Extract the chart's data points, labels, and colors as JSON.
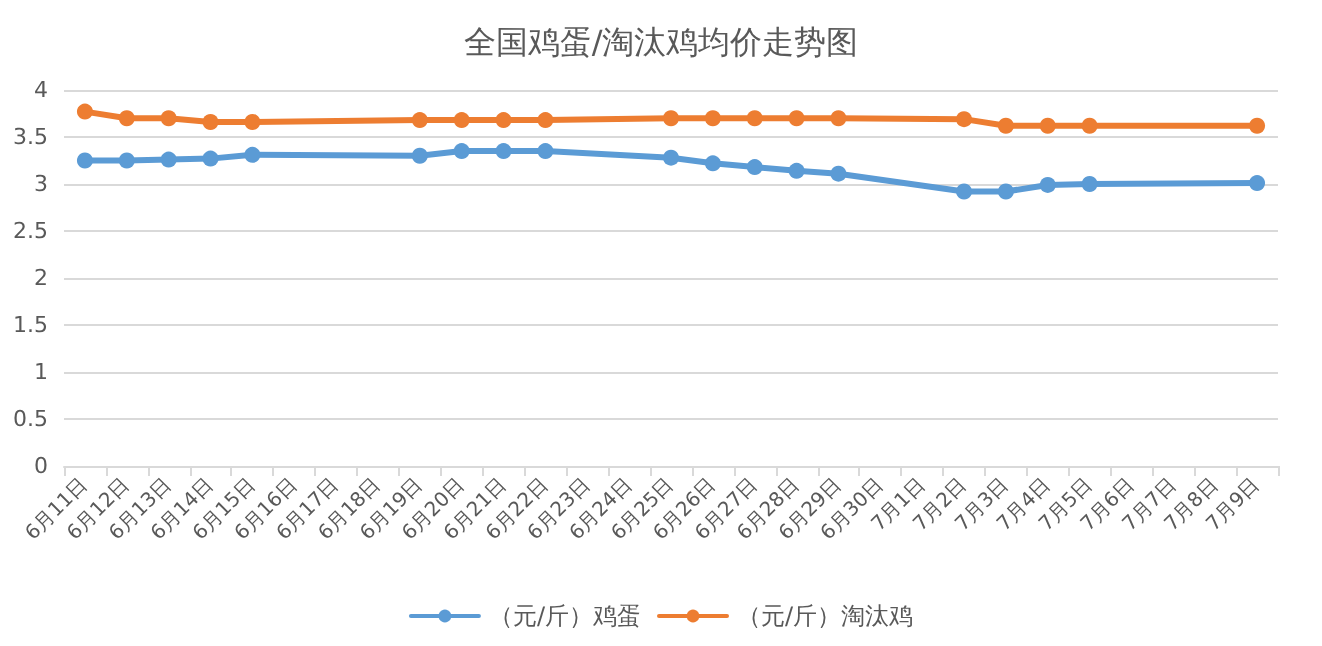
{
  "chart_data": {
    "type": "line",
    "title": "全国鸡蛋/淘汰鸡均价走势图",
    "categories": [
      "6月11日",
      "6月12日",
      "6月13日",
      "6月14日",
      "6月15日",
      "6月16日",
      "6月17日",
      "6月18日",
      "6月19日",
      "6月20日",
      "6月21日",
      "6月22日",
      "6月23日",
      "6月24日",
      "6月25日",
      "6月26日",
      "6月27日",
      "6月28日",
      "6月29日",
      "6月30日",
      "7月1日",
      "7月2日",
      "7月3日",
      "7月4日",
      "7月5日",
      "7月6日",
      "7月7日",
      "7月8日",
      "7月9日"
    ],
    "series": [
      {
        "name": "（元/斤）鸡蛋",
        "color": "#5b9bd5",
        "values": [
          3.25,
          3.25,
          3.26,
          3.27,
          3.31,
          null,
          null,
          null,
          3.3,
          3.35,
          3.35,
          3.35,
          null,
          null,
          3.28,
          3.22,
          3.18,
          3.14,
          3.11,
          null,
          null,
          2.92,
          2.92,
          2.99,
          3.0,
          null,
          null,
          null,
          3.01
        ]
      },
      {
        "name": "（元/斤）淘汰鸡",
        "color": "#ed7d31",
        "values": [
          3.77,
          3.7,
          3.7,
          3.66,
          3.66,
          null,
          null,
          null,
          3.68,
          3.68,
          3.68,
          3.68,
          null,
          null,
          3.7,
          3.7,
          3.7,
          3.7,
          3.7,
          null,
          null,
          3.69,
          3.62,
          3.62,
          3.62,
          null,
          null,
          null,
          3.62
        ]
      }
    ],
    "ylim": [
      0,
      4
    ],
    "yticks": [
      0,
      0.5,
      1,
      1.5,
      2,
      2.5,
      3,
      3.5,
      4
    ],
    "grid": "y",
    "legend": "bottom",
    "marker": "circle",
    "line_style": "solid"
  }
}
